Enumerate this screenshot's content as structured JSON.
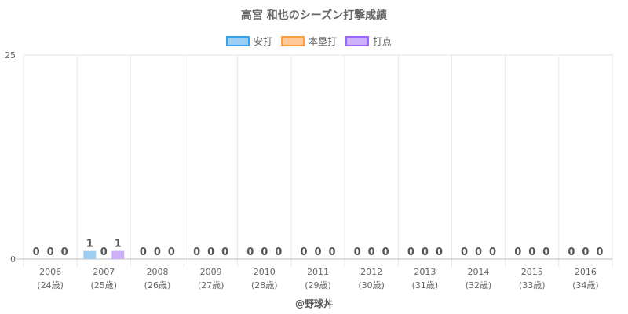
{
  "chart_data": {
    "type": "bar",
    "title": "高宮 和也のシーズン打撃成績",
    "categories": [
      "2006",
      "2007",
      "2008",
      "2009",
      "2010",
      "2011",
      "2012",
      "2013",
      "2014",
      "2015",
      "2016"
    ],
    "ages": [
      "(24歳)",
      "(25歳)",
      "(26歳)",
      "(27歳)",
      "(28歳)",
      "(29歳)",
      "(30歳)",
      "(31歳)",
      "(32歳)",
      "(33歳)",
      "(34歳)"
    ],
    "series": [
      {
        "name": "安打",
        "values": [
          0,
          1,
          0,
          0,
          0,
          0,
          0,
          0,
          0,
          0,
          0
        ],
        "fill": "#9ecff3",
        "stroke": "#36a2eb"
      },
      {
        "name": "本塁打",
        "values": [
          0,
          0,
          0,
          0,
          0,
          0,
          0,
          0,
          0,
          0,
          0
        ],
        "fill": "#ffc99a",
        "stroke": "#ff9f40"
      },
      {
        "name": "打点",
        "values": [
          0,
          1,
          0,
          0,
          0,
          0,
          0,
          0,
          0,
          0,
          0
        ],
        "fill": "#ccb0fa",
        "stroke": "#9966ff"
      }
    ],
    "ylim": [
      0,
      25
    ],
    "yticks": [
      "25",
      "0"
    ],
    "legend": "top",
    "grid": true
  },
  "footer": "@野球丼"
}
